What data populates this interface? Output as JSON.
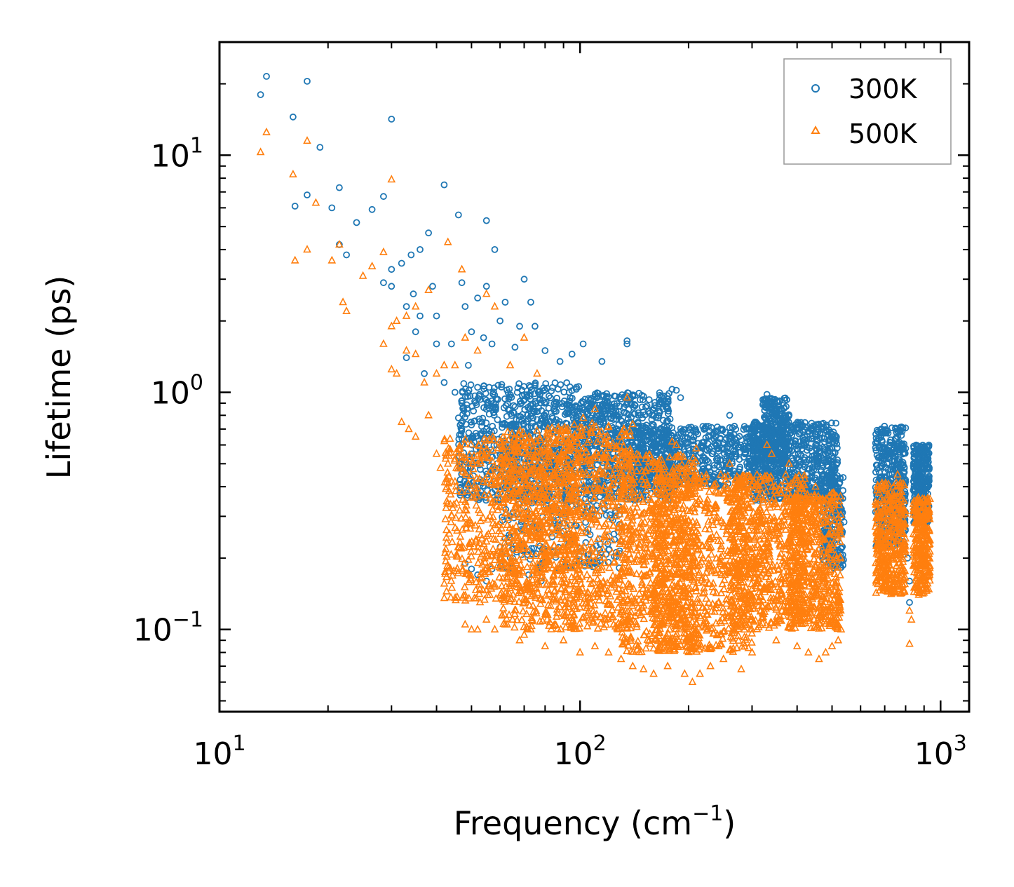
{
  "chart_data": {
    "type": "scatter",
    "title": "",
    "xlabel": "Frequency (cm",
    "xlabel_exp": "−1",
    "xlabel_close": ")",
    "ylabel": "Lifetime (ps)",
    "xscale": "log",
    "yscale": "log",
    "xlim": [
      10,
      1200
    ],
    "ylim": [
      0.045,
      30
    ],
    "x_ticks": [
      {
        "value": 10,
        "base": "10",
        "exp": "1"
      },
      {
        "value": 100,
        "base": "10",
        "exp": "2"
      },
      {
        "value": 1000,
        "base": "10",
        "exp": "3"
      }
    ],
    "y_ticks": [
      {
        "value": 0.1,
        "base": "10",
        "exp": "−1"
      },
      {
        "value": 1,
        "base": "10",
        "exp": "0"
      },
      {
        "value": 10,
        "base": "10",
        "exp": "1"
      }
    ],
    "legend": {
      "position": "top-right"
    },
    "series": [
      {
        "name": "300K",
        "marker": "circle",
        "color": "#1f77b4",
        "points": [
          [
            13,
            18
          ],
          [
            13.5,
            21.5
          ],
          [
            17.5,
            20.5
          ],
          [
            16,
            14.5
          ],
          [
            19,
            10.8
          ],
          [
            30,
            14.2
          ],
          [
            17.5,
            6.8
          ],
          [
            16.2,
            6.1
          ],
          [
            21.5,
            7.3
          ],
          [
            20.5,
            6
          ],
          [
            26.5,
            5.9
          ],
          [
            24,
            5.2
          ],
          [
            28.5,
            6.7
          ],
          [
            42,
            7.5
          ],
          [
            46,
            5.6
          ],
          [
            55,
            5.3
          ],
          [
            38,
            4.7
          ],
          [
            21.5,
            4.2
          ],
          [
            22.5,
            3.8
          ],
          [
            34,
            3.8
          ],
          [
            36,
            4
          ],
          [
            58,
            4
          ],
          [
            30,
            3.3
          ],
          [
            32,
            3.5
          ],
          [
            28.5,
            2.9
          ],
          [
            30,
            2.8
          ],
          [
            34.5,
            2.6
          ],
          [
            39,
            2.8
          ],
          [
            33,
            2.3
          ],
          [
            36,
            2.1
          ],
          [
            40,
            2.1
          ],
          [
            70,
            3
          ],
          [
            73,
            2.4
          ],
          [
            62,
            2.4
          ],
          [
            48,
            2.3
          ],
          [
            52,
            2.5
          ],
          [
            55,
            2.8
          ],
          [
            47,
            2.9
          ],
          [
            60,
            2
          ],
          [
            68,
            1.9
          ],
          [
            75,
            1.9
          ],
          [
            35,
            1.8
          ],
          [
            40,
            1.6
          ],
          [
            44,
            1.6
          ],
          [
            50,
            1.8
          ],
          [
            54,
            1.7
          ],
          [
            33,
            1.4
          ],
          [
            37,
            1.2
          ],
          [
            42,
            1.1
          ],
          [
            45,
            1
          ],
          [
            47,
            0.9
          ],
          [
            49,
            1.3
          ],
          [
            52,
            1.05
          ],
          [
            57,
            1.6
          ],
          [
            66,
            1.55
          ],
          [
            80,
            1.5
          ],
          [
            88,
            1.35
          ],
          [
            95,
            1.45
          ],
          [
            102,
            1.6
          ],
          [
            115,
            1.35
          ],
          [
            135,
            1.6
          ],
          [
            135,
            1.65
          ],
          [
            46,
            0.78
          ],
          [
            47,
            0.6
          ],
          [
            50,
            0.55
          ],
          [
            55,
            0.7
          ],
          [
            60,
            0.45
          ],
          [
            48,
            0.19
          ],
          [
            50,
            0.18
          ],
          [
            52,
            0.17
          ],
          [
            55,
            0.16
          ],
          [
            57,
            0.18
          ],
          [
            65,
            0.2
          ],
          [
            72,
            0.17
          ],
          [
            78,
            0.16
          ],
          [
            180,
            1.03
          ],
          [
            185,
            1.02
          ],
          [
            190,
            0.95
          ],
          [
            170,
            0.85
          ],
          [
            210,
            0.68
          ],
          [
            260,
            0.8
          ],
          [
            290,
            0.7
          ],
          [
            300,
            0.65
          ],
          [
            330,
            0.98
          ],
          [
            340,
            0.9
          ],
          [
            350,
            0.85
          ],
          [
            380,
            0.8
          ],
          [
            400,
            0.7
          ],
          [
            420,
            0.65
          ],
          [
            450,
            0.6
          ],
          [
            480,
            0.55
          ],
          [
            500,
            0.42
          ],
          [
            505,
            0.38
          ],
          [
            510,
            0.33
          ],
          [
            520,
            0.28
          ],
          [
            530,
            0.22
          ],
          [
            690,
            0.28
          ],
          [
            700,
            0.36
          ],
          [
            720,
            0.45
          ],
          [
            740,
            0.6
          ],
          [
            750,
            0.7
          ],
          [
            760,
            0.65
          ],
          [
            780,
            0.5
          ],
          [
            800,
            0.42
          ],
          [
            810,
            0.2
          ],
          [
            820,
            0.13
          ],
          [
            850,
            0.45
          ],
          [
            880,
            0.55
          ],
          [
            900,
            0.58
          ],
          [
            920,
            0.55
          ],
          [
            930,
            0.48
          ],
          [
            670,
            0.24
          ],
          [
            680,
            0.3
          ],
          [
            820,
            0.16
          ]
        ],
        "bands": [
          {
            "x0": 46,
            "x1": 100,
            "ylo": 0.35,
            "yhi": 1.1,
            "n": 650
          },
          {
            "x0": 60,
            "x1": 130,
            "ylo": 0.18,
            "yhi": 0.9,
            "n": 500
          },
          {
            "x0": 100,
            "x1": 180,
            "ylo": 0.35,
            "yhi": 1.0,
            "n": 550
          },
          {
            "x0": 140,
            "x1": 340,
            "ylo": 0.4,
            "yhi": 0.72,
            "n": 700
          },
          {
            "x0": 300,
            "x1": 520,
            "ylo": 0.35,
            "yhi": 0.75,
            "n": 650
          },
          {
            "x0": 320,
            "x1": 380,
            "ylo": 0.5,
            "yhi": 0.95,
            "n": 220
          },
          {
            "x0": 470,
            "x1": 540,
            "ylo": 0.18,
            "yhi": 0.45,
            "n": 200
          },
          {
            "x0": 660,
            "x1": 800,
            "ylo": 0.22,
            "yhi": 0.72,
            "n": 420
          },
          {
            "x0": 840,
            "x1": 930,
            "ylo": 0.28,
            "yhi": 0.6,
            "n": 300
          }
        ]
      },
      {
        "name": "500K",
        "marker": "triangle",
        "color": "#ff7f0e",
        "points": [
          [
            13,
            10.3
          ],
          [
            13.5,
            12.5
          ],
          [
            16,
            8.3
          ],
          [
            17.5,
            11.5
          ],
          [
            18.5,
            6.3
          ],
          [
            16.2,
            3.6
          ],
          [
            17.5,
            4
          ],
          [
            20.5,
            3.6
          ],
          [
            21.5,
            4.2
          ],
          [
            22,
            2.4
          ],
          [
            22.5,
            2.2
          ],
          [
            25,
            3.1
          ],
          [
            26.5,
            3.4
          ],
          [
            28.5,
            3.9
          ],
          [
            30,
            7.9
          ],
          [
            30,
            1.9
          ],
          [
            31,
            2
          ],
          [
            33,
            2.1
          ],
          [
            35,
            2.3
          ],
          [
            38,
            2.7
          ],
          [
            43,
            4.3
          ],
          [
            47,
            3.3
          ],
          [
            55,
            2.6
          ],
          [
            58,
            2.3
          ],
          [
            48,
            1.7
          ],
          [
            52,
            1.5
          ],
          [
            28.5,
            1.6
          ],
          [
            30,
            1.25
          ],
          [
            31,
            1.2
          ],
          [
            33,
            1.5
          ],
          [
            35,
            1.45
          ],
          [
            37,
            1.1
          ],
          [
            40,
            1.2
          ],
          [
            42,
            1.3
          ],
          [
            45,
            1.3
          ],
          [
            32,
            0.75
          ],
          [
            33.5,
            0.7
          ],
          [
            35,
            0.65
          ],
          [
            38,
            0.8
          ],
          [
            40,
            0.55
          ],
          [
            41,
            0.48
          ],
          [
            43,
            0.5
          ],
          [
            45,
            0.42
          ],
          [
            47,
            0.38
          ],
          [
            48,
            0.32
          ],
          [
            50,
            0.28
          ],
          [
            53,
            0.25
          ],
          [
            57,
            0.26
          ],
          [
            48,
            0.105
          ],
          [
            50,
            0.1
          ],
          [
            52,
            0.1
          ],
          [
            55,
            0.11
          ],
          [
            58,
            0.1
          ],
          [
            62,
            0.105
          ],
          [
            65,
            0.11
          ],
          [
            68,
            0.09
          ],
          [
            70,
            0.095
          ],
          [
            73,
            0.1
          ],
          [
            80,
            0.085
          ],
          [
            90,
            0.09
          ],
          [
            100,
            0.08
          ],
          [
            110,
            0.085
          ],
          [
            120,
            0.08
          ],
          [
            130,
            0.075
          ],
          [
            140,
            0.07
          ],
          [
            150,
            0.068
          ],
          [
            160,
            0.065
          ],
          [
            175,
            0.07
          ],
          [
            195,
            0.065
          ],
          [
            205,
            0.06
          ],
          [
            215,
            0.065
          ],
          [
            230,
            0.07
          ],
          [
            250,
            0.075
          ],
          [
            280,
            0.068
          ],
          [
            300,
            0.08
          ],
          [
            350,
            0.09
          ],
          [
            400,
            0.085
          ],
          [
            430,
            0.08
          ],
          [
            460,
            0.075
          ],
          [
            480,
            0.08
          ],
          [
            500,
            0.085
          ],
          [
            520,
            0.09
          ],
          [
            530,
            0.1
          ],
          [
            820,
            0.087
          ],
          [
            135,
            0.95
          ],
          [
            70,
            1.7
          ],
          [
            76,
            1.2
          ],
          [
            64,
            1.3
          ],
          [
            102,
            0.78
          ],
          [
            110,
            0.85
          ],
          [
            120,
            0.72
          ],
          [
            180,
            0.62
          ],
          [
            185,
            0.6
          ],
          [
            210,
            0.58
          ],
          [
            260,
            0.5
          ],
          [
            330,
            0.6
          ],
          [
            340,
            0.55
          ],
          [
            380,
            0.5
          ],
          [
            450,
            0.4
          ],
          [
            500,
            0.35
          ],
          [
            700,
            0.3
          ],
          [
            740,
            0.4
          ],
          [
            760,
            0.45
          ],
          [
            780,
            0.38
          ],
          [
            860,
            0.3
          ],
          [
            900,
            0.35
          ],
          [
            930,
            0.32
          ],
          [
            680,
            0.16
          ],
          [
            690,
            0.15
          ],
          [
            820,
            0.12
          ],
          [
            830,
            0.11
          ],
          [
            870,
            0.14
          ],
          [
            920,
            0.2
          ]
        ],
        "bands": [
          {
            "x0": 42,
            "x1": 80,
            "ylo": 0.13,
            "yhi": 0.65,
            "n": 500
          },
          {
            "x0": 60,
            "x1": 100,
            "ylo": 0.1,
            "yhi": 0.7,
            "n": 500
          },
          {
            "x0": 80,
            "x1": 140,
            "ylo": 0.1,
            "yhi": 0.75,
            "n": 650
          },
          {
            "x0": 130,
            "x1": 210,
            "ylo": 0.08,
            "yhi": 0.55,
            "n": 650
          },
          {
            "x0": 160,
            "x1": 300,
            "ylo": 0.08,
            "yhi": 0.45,
            "n": 750
          },
          {
            "x0": 260,
            "x1": 420,
            "ylo": 0.1,
            "yhi": 0.45,
            "n": 650
          },
          {
            "x0": 380,
            "x1": 530,
            "ylo": 0.1,
            "yhi": 0.38,
            "n": 550
          },
          {
            "x0": 660,
            "x1": 800,
            "ylo": 0.14,
            "yhi": 0.42,
            "n": 380
          },
          {
            "x0": 840,
            "x1": 935,
            "ylo": 0.14,
            "yhi": 0.36,
            "n": 280
          }
        ]
      }
    ]
  }
}
